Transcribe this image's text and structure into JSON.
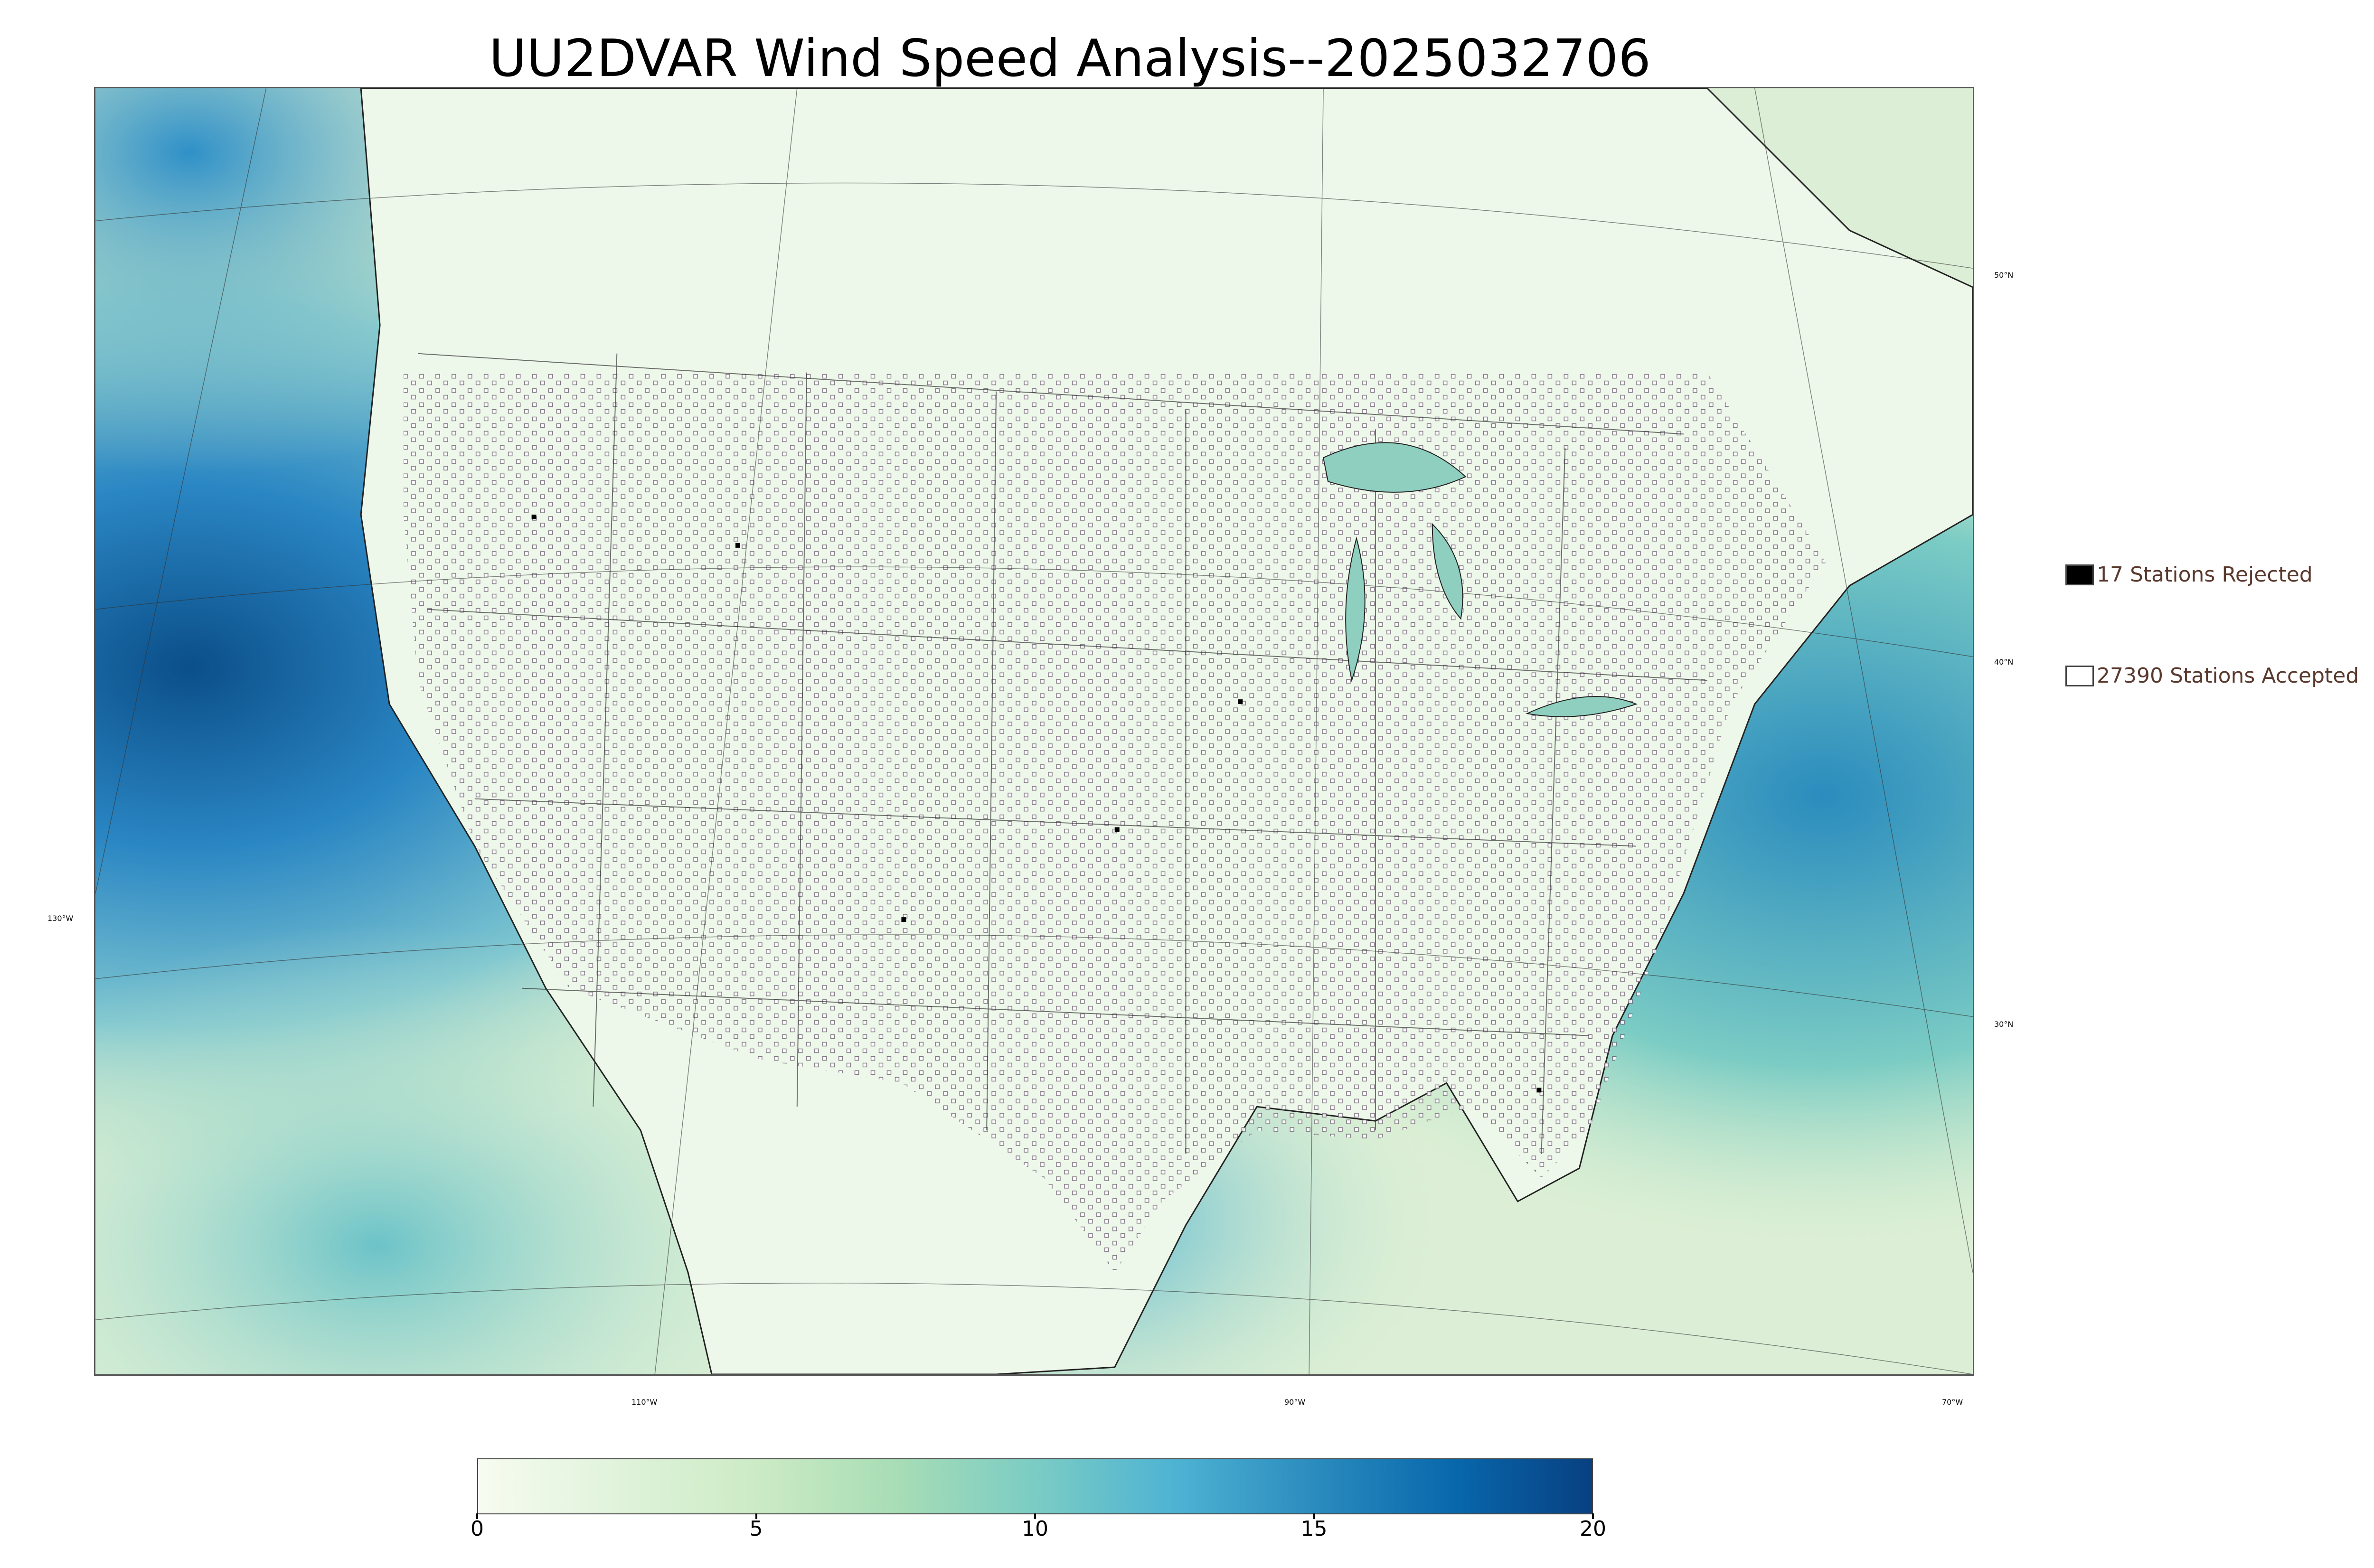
{
  "title": "UU2DVAR Wind Speed Analysis--2025032706",
  "latitude_labels": [
    "50°N",
    "40°N",
    "30°N"
  ],
  "longitude_labels": [
    "130°W",
    "110°W",
    "90°W",
    "70°W"
  ],
  "legend": {
    "rejected_label": "17 Stations Rejected",
    "accepted_label": "27390 Stations Accepted",
    "rejected_color": "#000000",
    "accepted_color": "#ffffff"
  },
  "colorbar": {
    "ticks": [
      "0",
      "5",
      "10",
      "15",
      "20"
    ],
    "min": 0,
    "max": 20,
    "colors": [
      "#f7fcf0",
      "#e0f3db",
      "#ccebc5",
      "#a8ddb5",
      "#7bccc4",
      "#4eb3d3",
      "#2b8cbe",
      "#0868ac",
      "#084081"
    ]
  },
  "colors": {
    "land_base": "#e6f3df",
    "ocean_low": "#d6efd0",
    "ocean_high": "#1f6fb0",
    "station_outline": "#6a5a6e",
    "borders": "#333333"
  }
}
